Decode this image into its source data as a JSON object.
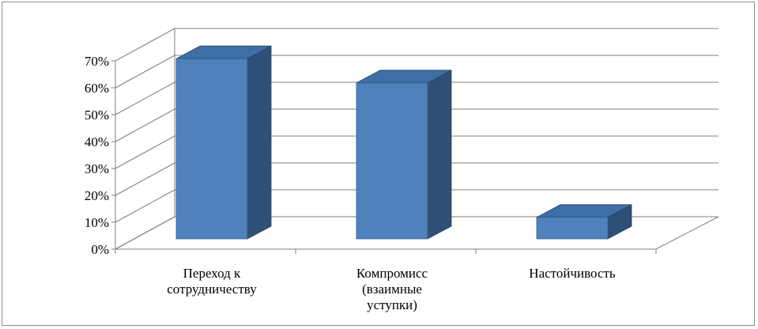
{
  "chart_data": {
    "type": "bar",
    "style": "3d-column",
    "categories": [
      [
        "Переход к",
        "сотрудничеству"
      ],
      [
        "Компромисс",
        "(взаимные",
        "уступки)"
      ],
      [
        "Настойчивость"
      ]
    ],
    "values": [
      67,
      58,
      8
    ],
    "ylim": [
      0,
      70
    ],
    "yticks": [
      "0%",
      "10%",
      "20%",
      "30%",
      "40%",
      "50%",
      "60%",
      "70%"
    ],
    "grid": true,
    "legend": false,
    "colors": {
      "front": "#4f81bd",
      "top": "#3d6ea6",
      "side": "#2e5077",
      "grid": "#7f7f7f"
    }
  }
}
